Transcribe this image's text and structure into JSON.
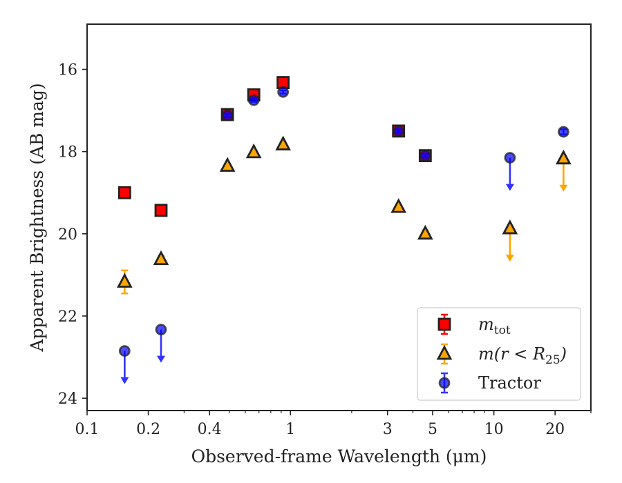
{
  "chart_data": {
    "type": "scatter",
    "xlabel": "Observed-frame Wavelength (μm)",
    "ylabel": "Apparent Brightness (AB mag)",
    "x_scale": "log",
    "xlim": [
      0.1,
      30
    ],
    "ylim": [
      24.3,
      14.9
    ],
    "y_inverted": true,
    "x_ticks": [
      0.1,
      0.2,
      0.4,
      1,
      3,
      5,
      10,
      20
    ],
    "x_tick_labels": [
      "0.1",
      "0.2",
      "0.4",
      "1",
      "3",
      "5",
      "10",
      "20"
    ],
    "y_ticks": [
      16,
      18,
      20,
      22,
      24
    ],
    "y_tick_labels": [
      "16",
      "18",
      "20",
      "22",
      "24"
    ],
    "grid": false,
    "legend": {
      "position": "bottom-right"
    },
    "series": [
      {
        "name": "m_tot",
        "legend_main": "m",
        "legend_sub": "tot",
        "marker": "square",
        "color": "#ff0000",
        "edge_color": "#222222",
        "points": [
          {
            "x": 0.153,
            "y": 19.0,
            "err": 0.06
          },
          {
            "x": 0.231,
            "y": 19.43,
            "err": 0.06
          },
          {
            "x": 0.49,
            "y": 17.1,
            "err": 0.04
          },
          {
            "x": 0.66,
            "y": 16.62,
            "err": 0.04
          },
          {
            "x": 0.92,
            "y": 16.32,
            "err": 0.04
          },
          {
            "x": 3.4,
            "y": 17.5,
            "err": 0.04
          },
          {
            "x": 4.6,
            "y": 18.1,
            "err": 0.04
          }
        ]
      },
      {
        "name": "m(r < R_25)",
        "legend_main": "m(r < R",
        "legend_sub": "25",
        "legend_tail": ")",
        "marker": "triangle",
        "color": "#ffa500",
        "edge_color": "#222222",
        "points": [
          {
            "x": 0.153,
            "y": 21.17,
            "err": 0.28
          },
          {
            "x": 0.231,
            "y": 20.62,
            "err": 0.08
          },
          {
            "x": 0.49,
            "y": 18.35,
            "err": 0.05
          },
          {
            "x": 0.66,
            "y": 18.02,
            "err": 0.05
          },
          {
            "x": 0.92,
            "y": 17.83,
            "err": 0.05
          },
          {
            "x": 3.4,
            "y": 19.35,
            "err": 0.05
          },
          {
            "x": 4.6,
            "y": 20.0,
            "err": 0.08
          },
          {
            "x": 12,
            "y": 19.87,
            "upper_limit": true
          },
          {
            "x": 22,
            "y": 18.17,
            "upper_limit": true
          }
        ]
      },
      {
        "name": "Tractor",
        "marker": "circle",
        "color": "#0000ff",
        "edge_color": "#222222",
        "alpha": 0.7,
        "points": [
          {
            "x": 0.153,
            "y": 22.85,
            "upper_limit": true
          },
          {
            "x": 0.231,
            "y": 22.33,
            "upper_limit": true
          },
          {
            "x": 0.49,
            "y": 17.12,
            "err": 0.04
          },
          {
            "x": 0.66,
            "y": 16.75,
            "err": 0.04
          },
          {
            "x": 0.92,
            "y": 16.55,
            "err": 0.04
          },
          {
            "x": 3.4,
            "y": 17.5,
            "err": 0.04
          },
          {
            "x": 4.6,
            "y": 18.1,
            "err": 0.04
          },
          {
            "x": 12,
            "y": 18.15,
            "upper_limit": true
          },
          {
            "x": 22,
            "y": 17.52,
            "err": 0.06
          }
        ]
      }
    ]
  }
}
